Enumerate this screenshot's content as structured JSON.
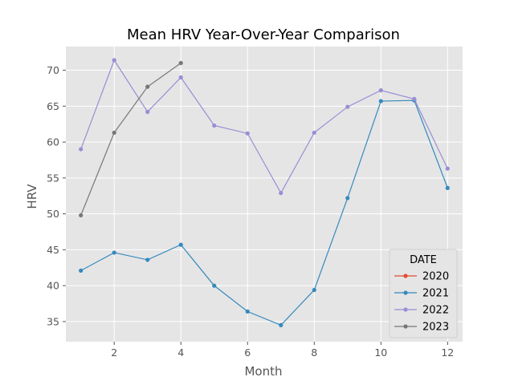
{
  "chart_data": {
    "type": "line",
    "title": "Mean HRV Year-Over-Year Comparison",
    "xlabel": "Month",
    "ylabel": "HRV",
    "xlim": [
      0.55,
      12.45
    ],
    "ylim": [
      32.2,
      73.3
    ],
    "xticks": [
      2,
      4,
      6,
      8,
      10,
      12
    ],
    "yticks": [
      35,
      40,
      45,
      50,
      55,
      60,
      65,
      70
    ],
    "grid": true,
    "legend": {
      "title": "DATE",
      "placement": "lower-right"
    },
    "series": [
      {
        "name": "2020",
        "color": "#E24A33",
        "x": [],
        "y": []
      },
      {
        "name": "2021",
        "color": "#348ABD",
        "x": [
          1,
          2,
          3,
          4,
          5,
          6,
          7,
          8,
          9,
          10,
          11,
          12
        ],
        "y": [
          42.1,
          44.6,
          43.6,
          45.7,
          40.0,
          36.4,
          34.5,
          39.4,
          52.2,
          65.7,
          65.8,
          53.6
        ]
      },
      {
        "name": "2022",
        "color": "#988ED5",
        "x": [
          1,
          2,
          3,
          4,
          5,
          6,
          7,
          8,
          9,
          10,
          11,
          12
        ],
        "y": [
          59.0,
          71.4,
          64.2,
          69.0,
          62.3,
          61.2,
          52.9,
          61.3,
          64.9,
          67.2,
          66.0,
          56.3
        ]
      },
      {
        "name": "2023",
        "color": "#777777",
        "x": [
          1,
          2,
          3,
          4
        ],
        "y": [
          49.8,
          61.3,
          67.7,
          71.0
        ]
      }
    ]
  }
}
